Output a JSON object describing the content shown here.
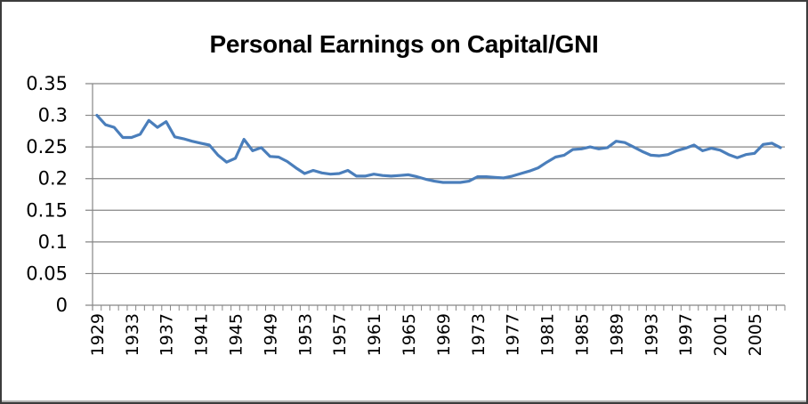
{
  "chart_data": {
    "type": "line",
    "title": "Personal Earnings on Capital/GNI",
    "xlabel": "",
    "ylabel": "",
    "ylim": [
      0,
      0.35
    ],
    "y_ticks": [
      "0",
      "0.05",
      "0.1",
      "0.15",
      "0.2",
      "0.25",
      "0.3",
      "0.35"
    ],
    "x_tick_labels": [
      "1929",
      "1933",
      "1937",
      "1941",
      "1945",
      "1949",
      "1953",
      "1957",
      "1961",
      "1965",
      "1969",
      "1973",
      "1977",
      "1981",
      "1985",
      "1989",
      "1993",
      "1997",
      "2001",
      "2005"
    ],
    "grid": true,
    "legend": null,
    "line_color": "#4A7EBB",
    "x": [
      1929,
      1930,
      1931,
      1932,
      1933,
      1934,
      1935,
      1936,
      1937,
      1938,
      1939,
      1940,
      1941,
      1942,
      1943,
      1944,
      1945,
      1946,
      1947,
      1948,
      1949,
      1950,
      1951,
      1952,
      1953,
      1954,
      1955,
      1956,
      1957,
      1958,
      1959,
      1960,
      1961,
      1962,
      1963,
      1964,
      1965,
      1966,
      1967,
      1968,
      1969,
      1970,
      1971,
      1972,
      1973,
      1974,
      1975,
      1976,
      1977,
      1978,
      1979,
      1980,
      1981,
      1982,
      1983,
      1984,
      1985,
      1986,
      1987,
      1988,
      1989,
      1990,
      1991,
      1992,
      1993,
      1994,
      1995,
      1996,
      1997,
      1998,
      1999,
      2000,
      2001,
      2002,
      2003,
      2004,
      2005,
      2006,
      2007,
      2008
    ],
    "series": [
      {
        "name": "Personal Earnings on Capital/GNI",
        "values": [
          0.3,
          0.285,
          0.281,
          0.265,
          0.265,
          0.27,
          0.292,
          0.281,
          0.29,
          0.266,
          0.263,
          0.259,
          0.256,
          0.253,
          0.237,
          0.226,
          0.232,
          0.262,
          0.244,
          0.249,
          0.235,
          0.234,
          0.227,
          0.217,
          0.208,
          0.213,
          0.209,
          0.207,
          0.208,
          0.213,
          0.204,
          0.204,
          0.207,
          0.205,
          0.204,
          0.205,
          0.206,
          0.203,
          0.199,
          0.196,
          0.194,
          0.194,
          0.194,
          0.196,
          0.203,
          0.203,
          0.202,
          0.201,
          0.204,
          0.208,
          0.212,
          0.217,
          0.226,
          0.234,
          0.237,
          0.246,
          0.247,
          0.25,
          0.247,
          0.249,
          0.259,
          0.257,
          0.25,
          0.243,
          0.237,
          0.236,
          0.238,
          0.244,
          0.248,
          0.253,
          0.244,
          0.248,
          0.245,
          0.238,
          0.233,
          0.238,
          0.24,
          0.254,
          0.256,
          0.249
        ]
      }
    ]
  }
}
